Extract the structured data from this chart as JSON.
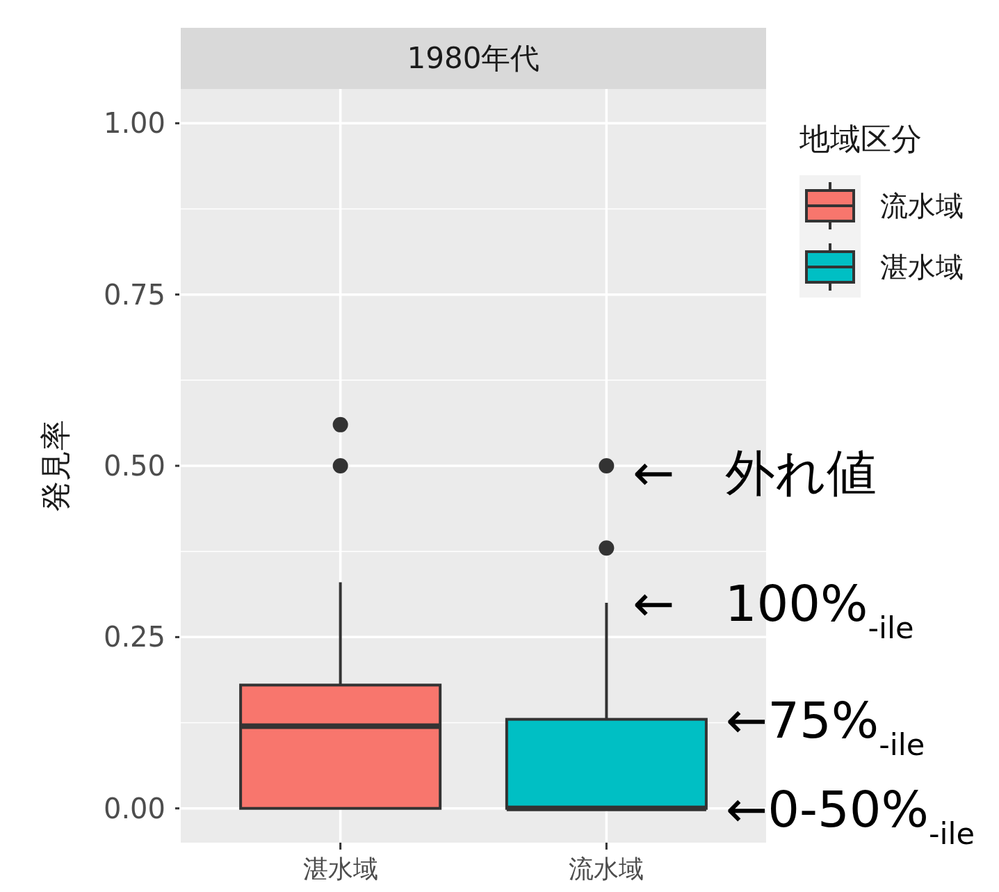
{
  "chart_data": {
    "type": "box",
    "title": "1980年代",
    "ylabel": "発見率",
    "legend_title": "地域区分",
    "categories": [
      "湛水域",
      "流水域"
    ],
    "series": [
      {
        "name": "流水域",
        "color": "#f8766d",
        "boxes": [
          {
            "low": 0,
            "q1": 0,
            "median": 0.12,
            "q3": 0.18,
            "high": 0.33,
            "outliers": [
              0.5,
              0.56
            ]
          },
          null
        ]
      },
      {
        "name": "湛水域",
        "color": "#00bfc4",
        "boxes": [
          null,
          {
            "low": 0,
            "q1": 0,
            "median": 0,
            "q3": 0.13,
            "high": 0.3,
            "outliers": [
              0.38,
              0.5
            ]
          }
        ]
      }
    ],
    "ylim": [
      -0.05,
      1.05
    ],
    "yticks": [
      {
        "value": 0,
        "label": "0.00"
      },
      {
        "value": 0.25,
        "label": "0.25"
      },
      {
        "value": 0.5,
        "label": "0.50"
      },
      {
        "value": 0.75,
        "label": "0.75"
      },
      {
        "value": 1,
        "label": "1.00"
      }
    ],
    "grid": true,
    "legend": "right",
    "annotations": [
      "←　外れ値",
      {
        "text": "←　100%$_{-ile}$",
        "x": "流水域",
        "y": 0.3
      },
      {
        "text": "←75%$_{-ile}$",
        "x": "流水域",
        "y": 0.13
      },
      {
        "text": "←0-50%$_{-ile}$",
        "x": "流水域",
        "y": 0
      }
    ]
  }
}
